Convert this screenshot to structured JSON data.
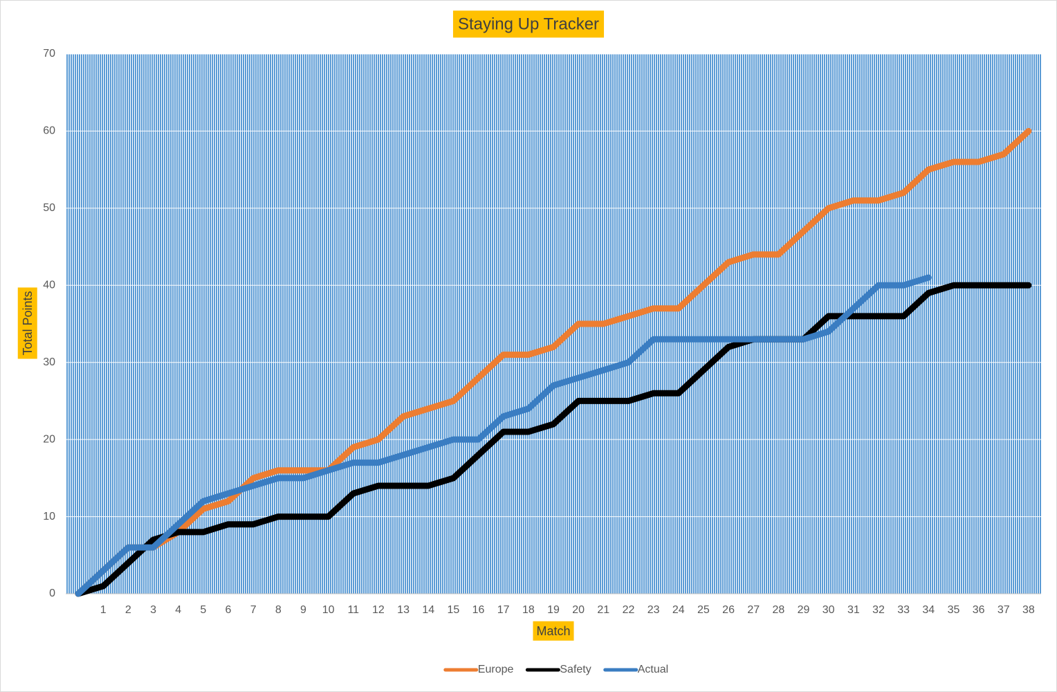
{
  "chart_data": {
    "type": "line",
    "title": "Staying Up Tracker",
    "x_label": "Match",
    "y_label": "Total Points",
    "categories": [
      null,
      "1",
      "2",
      "3",
      "4",
      "5",
      "6",
      "7",
      "8",
      "9",
      "10",
      "11",
      "12",
      "13",
      "14",
      "15",
      "16",
      "17",
      "18",
      "19",
      "20",
      "21",
      "22",
      "23",
      "24",
      "25",
      "26",
      "27",
      "28",
      "29",
      "30",
      "31",
      "32",
      "33",
      "34",
      "35",
      "36",
      "37",
      "38"
    ],
    "series": [
      {
        "name": "Europe",
        "color": "#ed7d31",
        "values": [
          0,
          3,
          6,
          6,
          8,
          11,
          12,
          15,
          16,
          16,
          16,
          19,
          20,
          23,
          24,
          25,
          28,
          31,
          31,
          32,
          35,
          35,
          36,
          37,
          37,
          40,
          43,
          44,
          44,
          47,
          50,
          51,
          51,
          52,
          55,
          56,
          56,
          57,
          60
        ]
      },
      {
        "name": "Safety",
        "color": "#000000",
        "values": [
          0,
          1,
          4,
          7,
          8,
          8,
          9,
          9,
          10,
          10,
          10,
          13,
          14,
          14,
          14,
          15,
          18,
          21,
          21,
          22,
          25,
          25,
          25,
          26,
          26,
          29,
          32,
          33,
          33,
          33,
          36,
          36,
          36,
          36,
          39,
          40,
          40,
          40,
          40
        ]
      },
      {
        "name": "Actual",
        "color": "#3a7dc2",
        "values": [
          0,
          3,
          6,
          6,
          9,
          12,
          13,
          14,
          15,
          15,
          16,
          17,
          17,
          18,
          19,
          20,
          20,
          23,
          24,
          27,
          28,
          29,
          30,
          33,
          33,
          33,
          33,
          33,
          33,
          33,
          34,
          37,
          40,
          40,
          41,
          null,
          null,
          null,
          null
        ]
      }
    ],
    "ylim": [
      0,
      70
    ],
    "yticks": [
      0,
      10,
      20,
      30,
      40,
      50,
      60,
      70
    ],
    "grid": true,
    "legend": "bottom"
  }
}
